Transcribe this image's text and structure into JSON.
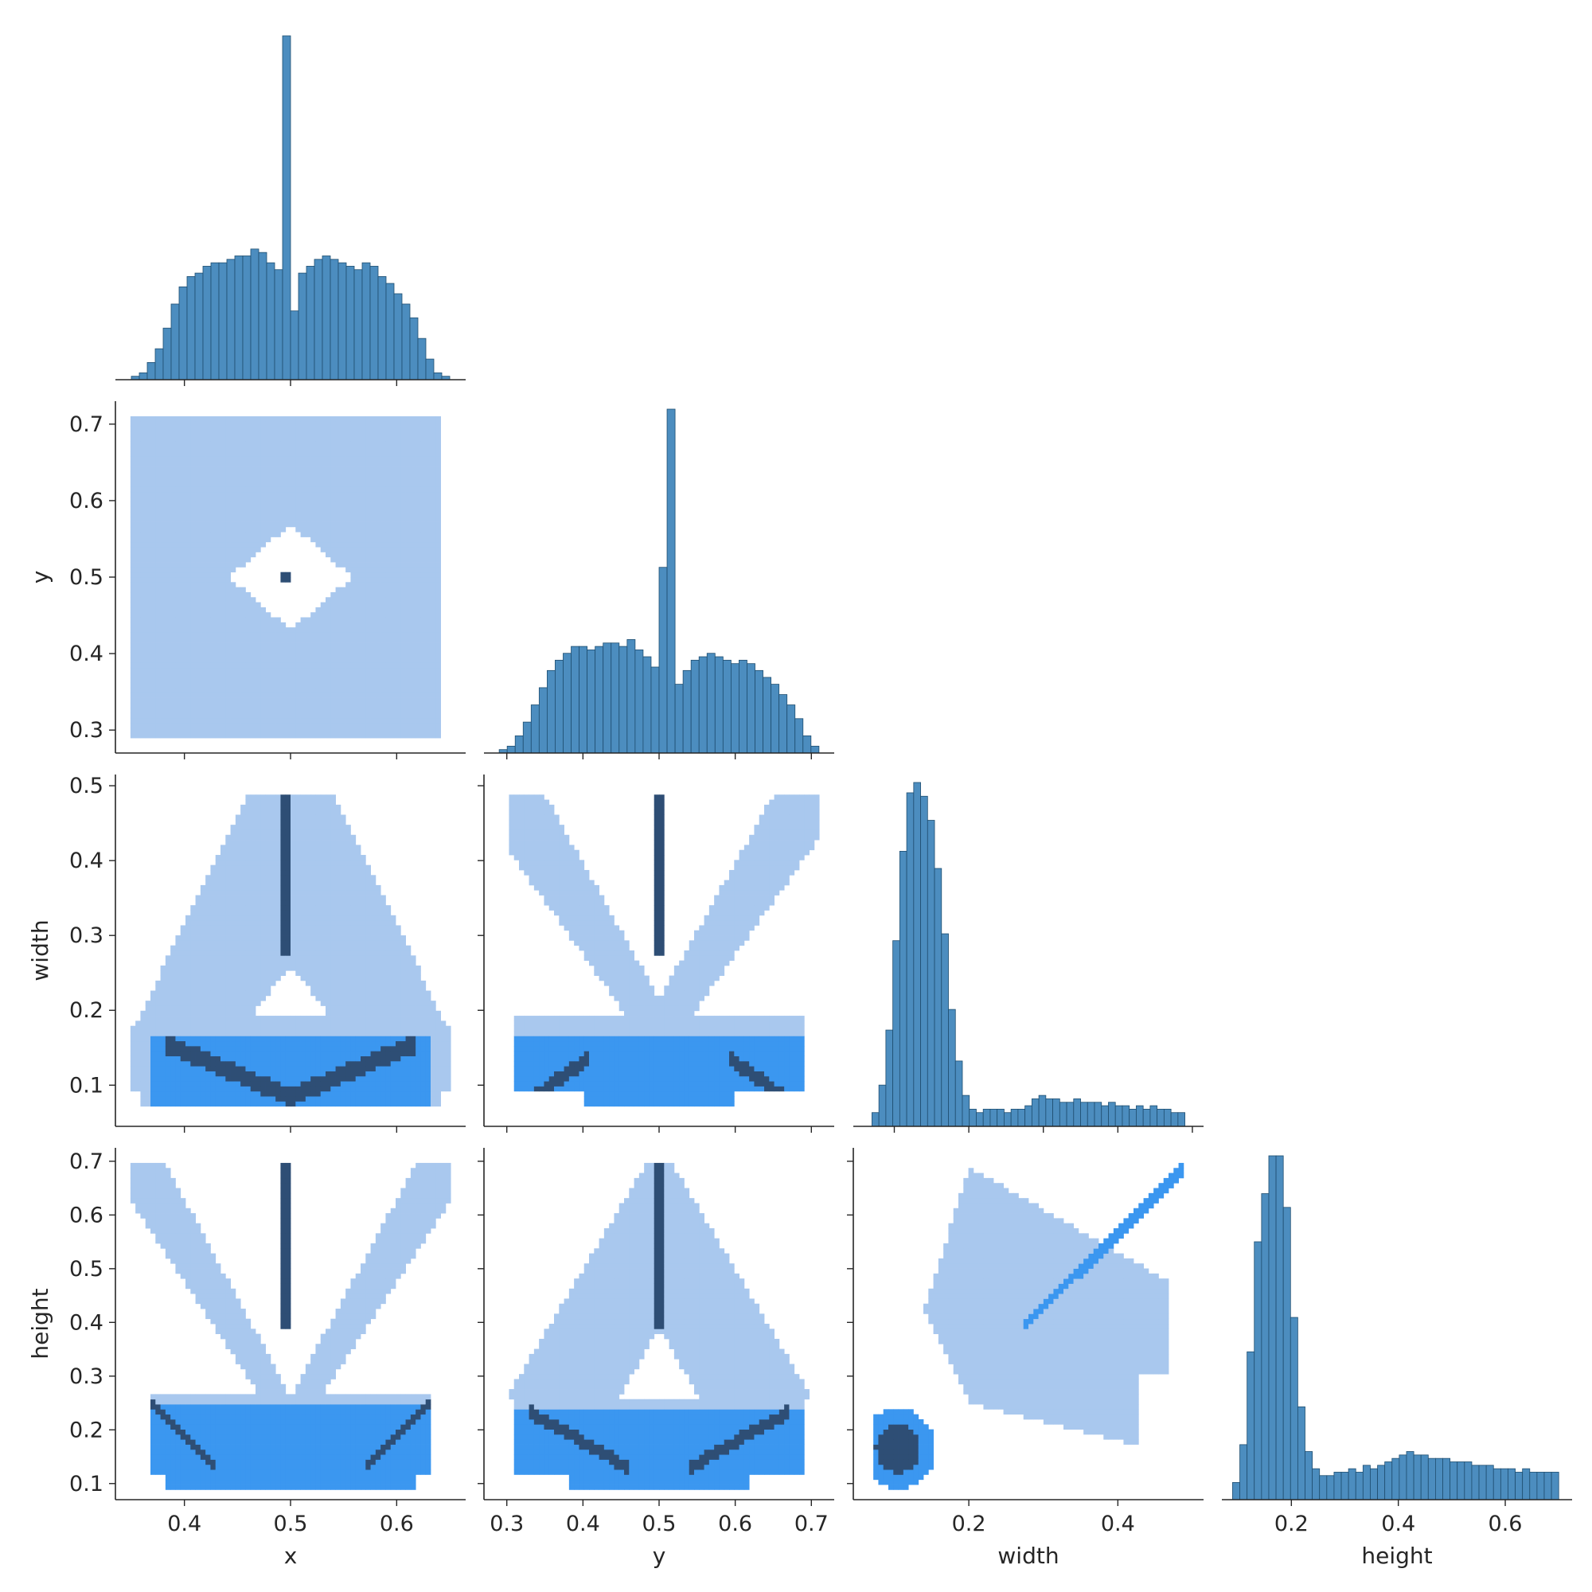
{
  "chart_data": {
    "type": "pairplot",
    "variables": [
      "x",
      "y",
      "width",
      "height"
    ],
    "layout": "lower-triangle (corner)",
    "diagonal": "histogram",
    "off_diagonal": "2D histogram",
    "colors": {
      "hist_fill": "#4c8dbf",
      "hist_edge": "#1f4e70",
      "density_low": "#a9c8ee",
      "density_mid": "#3b97f0",
      "density_high": "#2e4e75"
    },
    "axes": {
      "x": {
        "label": "x",
        "lim": [
          0.335,
          0.665
        ],
        "ticks": [
          0.4,
          0.5,
          0.6
        ],
        "tick_labels": [
          "0.4",
          "0.5",
          "0.6"
        ]
      },
      "y": {
        "label": "y",
        "lim": [
          0.27,
          0.73
        ],
        "ticks": [
          0.3,
          0.4,
          0.5,
          0.6,
          0.7
        ],
        "tick_labels": [
          "0.3",
          "0.4",
          "0.5",
          "0.6",
          "0.7"
        ]
      },
      "width": {
        "label": "width",
        "lim": [
          0.045,
          0.515
        ],
        "ticks": [
          0.1,
          0.2,
          0.3,
          0.4,
          0.5
        ],
        "tick_labels": [
          "0.1",
          "0.2",
          "0.3",
          "0.4",
          "0.5"
        ],
        "bottom_ticks": [
          0.2,
          0.4
        ],
        "bottom_tick_labels": [
          "0.2",
          "0.4"
        ]
      },
      "height": {
        "label": "height",
        "lim": [
          0.07,
          0.725
        ],
        "ticks": [
          0.1,
          0.2,
          0.3,
          0.4,
          0.5,
          0.6,
          0.7
        ],
        "tick_labels": [
          "0.1",
          "0.2",
          "0.3",
          "0.4",
          "0.5",
          "0.6",
          "0.7"
        ],
        "bottom_ticks": [
          0.2,
          0.4,
          0.6
        ],
        "bottom_tick_labels": [
          "0.2",
          "0.4",
          "0.6"
        ]
      }
    },
    "histograms": {
      "x": {
        "range": [
          0.35,
          0.65
        ],
        "counts": [
          1,
          2,
          5,
          9,
          15,
          22,
          27,
          30,
          31,
          33,
          34,
          34,
          35,
          36,
          36,
          38,
          37,
          34,
          32,
          100,
          20,
          31,
          33,
          35,
          36,
          35,
          34,
          33,
          32,
          34,
          33,
          30,
          28,
          25,
          22,
          18,
          12,
          6,
          2,
          1
        ]
      },
      "y": {
        "range": [
          0.29,
          0.71
        ],
        "counts": [
          1,
          2,
          5,
          9,
          14,
          19,
          24,
          27,
          29,
          31,
          31,
          30,
          31,
          32,
          32,
          31,
          33,
          30,
          28,
          25,
          54,
          100,
          20,
          24,
          27,
          28,
          29,
          28,
          27,
          26,
          27,
          26,
          24,
          22,
          20,
          17,
          14,
          10,
          5,
          2
        ]
      },
      "width": {
        "range": [
          0.07,
          0.49
        ],
        "counts": [
          4,
          12,
          28,
          54,
          80,
          97,
          100,
          96,
          89,
          75,
          56,
          34,
          19,
          9,
          5,
          4,
          5,
          5,
          5,
          4,
          5,
          5,
          6,
          8,
          9,
          8,
          8,
          7,
          7,
          8,
          7,
          7,
          7,
          6,
          7,
          6,
          6,
          5,
          6,
          5,
          6,
          5,
          5,
          4,
          4
        ]
      },
      "height": {
        "range": [
          0.09,
          0.7
        ],
        "counts": [
          5,
          16,
          43,
          75,
          89,
          100,
          100,
          85,
          53,
          27,
          14,
          9,
          7,
          7,
          8,
          8,
          9,
          8,
          10,
          9,
          10,
          11,
          12,
          13,
          14,
          13,
          13,
          12,
          12,
          12,
          11,
          11,
          11,
          10,
          10,
          10,
          9,
          9,
          9,
          8,
          9,
          8,
          8,
          8,
          8
        ]
      }
    },
    "scatter_panels": [
      {
        "x": "x",
        "y": "y",
        "notes": "uniform square region with diamond-shaped hole around (0.5, 0.5); dense point at (0.5, 0.5)"
      },
      {
        "x": "x",
        "y": "width",
        "notes": "triangular region above width 0.2, dense vertical line at x = 0.5 (width 0.28-0.49), V-shaped dense band at width 0.08-0.17"
      },
      {
        "x": "y",
        "y": "width",
        "notes": "X-shaped wings from (0.32, 0.48) and (0.68, 0.48) meeting near (0.5, 0.2); dense line at y = 0.5"
      },
      {
        "x": "x",
        "y": "height",
        "notes": "X-shaped wings up to height 0.68, dense line at x = 0.5 (height 0.39-0.69), dense band at height 0.10-0.25"
      },
      {
        "x": "y",
        "y": "height",
        "notes": "triangular region, dense line at y = 0.5, V-shaped dense band at height 0.10-0.25"
      },
      {
        "x": "width",
        "y": "height",
        "notes": "dense blob around (0.10, 0.16), broad region (0.14-0.47, 0.15-0.69), dense diagonal from (0.28, 0.40) to (0.49, 0.69)"
      }
    ]
  }
}
